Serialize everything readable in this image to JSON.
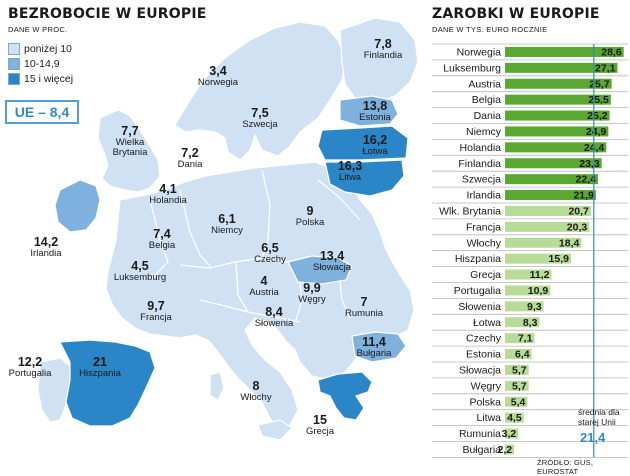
{
  "left": {
    "title": "BEZROBOCIE W EUROPIE",
    "subtitle": "DANE W PROC.",
    "legend": [
      {
        "label": "poniżej 10",
        "color": "#cfe1f3"
      },
      {
        "label": "10-14,9",
        "color": "#7fb1de"
      },
      {
        "label": "15 i więcej",
        "color": "#2b86c8"
      }
    ],
    "ue_label": "UE – 8,4"
  },
  "right": {
    "title": "ZAROBKI W EUROPIE",
    "subtitle": "DANE W TYS. EURO ROCZNIE",
    "avg_label": "średnia dla starej Unii",
    "avg_value": "21,4",
    "source": "ŹRÓDŁO: GUS, EUROSTAT"
  },
  "chart_data": [
    {
      "type": "map",
      "title": "BEZROBOCIE W EUROPIE",
      "unit": "proc.",
      "values": [
        {
          "country": "Finlandia",
          "value": "7,8"
        },
        {
          "country": "Norwegia",
          "value": "3,4"
        },
        {
          "country": "Szwecja",
          "value": "7,5"
        },
        {
          "country": "Estonia",
          "value": "13,8"
        },
        {
          "country": "Łotwa",
          "value": "16,2"
        },
        {
          "country": "Litwa",
          "value": "16,3"
        },
        {
          "country": "Wielka Brytania",
          "value": "7,7"
        },
        {
          "country": "Dania",
          "value": "7,2"
        },
        {
          "country": "Holandia",
          "value": "4,1"
        },
        {
          "country": "Niemcy",
          "value": "6,1"
        },
        {
          "country": "Polska",
          "value": "9"
        },
        {
          "country": "Irlandia",
          "value": "14,2"
        },
        {
          "country": "Belgia",
          "value": "7,4"
        },
        {
          "country": "Czechy",
          "value": "6,5"
        },
        {
          "country": "Słowacja",
          "value": "13,4"
        },
        {
          "country": "Luksemburg",
          "value": "4,5"
        },
        {
          "country": "Austria",
          "value": "4"
        },
        {
          "country": "Węgry",
          "value": "9,9"
        },
        {
          "country": "Francja",
          "value": "9,7"
        },
        {
          "country": "Słowenia",
          "value": "8,4"
        },
        {
          "country": "Rumunia",
          "value": "7"
        },
        {
          "country": "Bułgaria",
          "value": "11,4"
        },
        {
          "country": "Portugalia",
          "value": "12,2"
        },
        {
          "country": "Hiszpania",
          "value": "21"
        },
        {
          "country": "Włochy",
          "value": "8"
        },
        {
          "country": "Grecja",
          "value": "15"
        }
      ]
    },
    {
      "type": "bar",
      "title": "ZAROBKI W EUROPIE",
      "unit": "tys. euro rocznie",
      "orientation": "horizontal",
      "colors": {
        "above_avg": "#5aa832",
        "below_avg": "#b9db98",
        "avg_line": "#2e8bc9"
      },
      "average": 21.4,
      "categories": [
        "Norwegia",
        "Luksemburg",
        "Austria",
        "Belgia",
        "Dania",
        "Niemcy",
        "Holandia",
        "Finlandia",
        "Szwecja",
        "Irlandia",
        "Wlk. Brytania",
        "Francja",
        "Włochy",
        "Hiszpania",
        "Grecja",
        "Portugalia",
        "Słowenia",
        "Łotwa",
        "Czechy",
        "Estonia",
        "Słowacja",
        "Węgry",
        "Polska",
        "Litwa",
        "Rumunia",
        "Bułgaria"
      ],
      "values": [
        28.6,
        27.1,
        25.7,
        25.5,
        25.2,
        24.9,
        24.4,
        23.3,
        22.4,
        21.9,
        20.7,
        20.3,
        18.4,
        15.9,
        11.2,
        10.9,
        9.3,
        8.3,
        7.1,
        6.4,
        5.7,
        5.7,
        5.4,
        4.5,
        3.2,
        2.2
      ],
      "value_labels": [
        "28,6",
        "27,1",
        "25,7",
        "25,5",
        "25,2",
        "24,9",
        "24,4",
        "23,3",
        "22,4",
        "21,9",
        "20,7",
        "20,3",
        "18,4",
        "15,9",
        "11,2",
        "10,9",
        "9,3",
        "8,3",
        "7,1",
        "6,4",
        "5,7",
        "5,7",
        "5,4",
        "4,5",
        "3,2",
        "2,2"
      ]
    }
  ]
}
